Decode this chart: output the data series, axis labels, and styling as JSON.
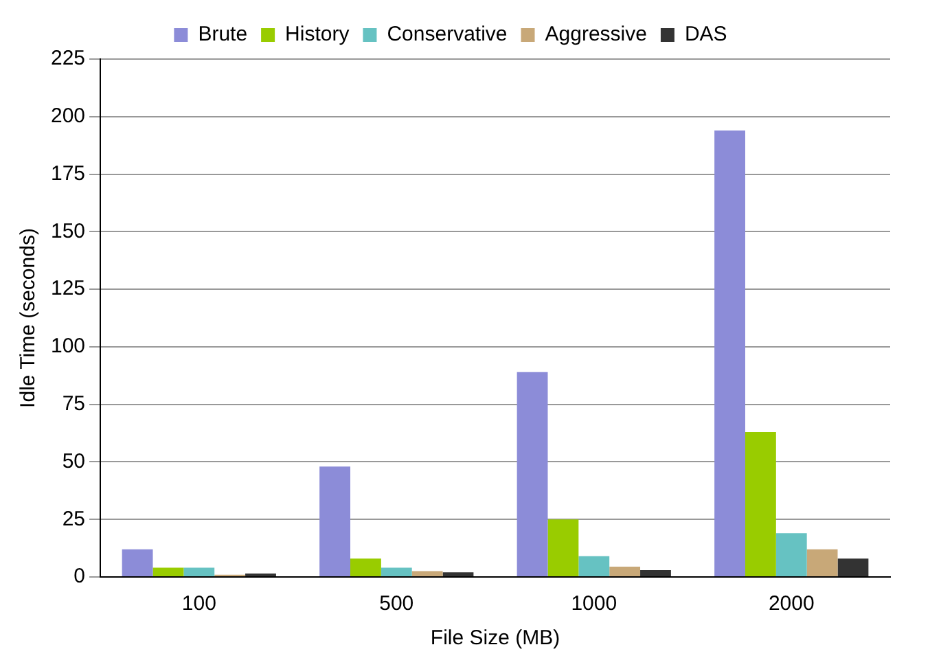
{
  "chart_data": {
    "type": "bar",
    "xlabel": "File Size (MB)",
    "ylabel": "Idle Time (seconds)",
    "categories": [
      "100",
      "500",
      "1000",
      "2000"
    ],
    "series": [
      {
        "name": "Brute",
        "color": "#8c8cd8",
        "values": [
          12,
          48,
          89,
          194
        ]
      },
      {
        "name": "History",
        "color": "#99cc00",
        "values": [
          4,
          8,
          25,
          63
        ]
      },
      {
        "name": "Conservative",
        "color": "#66c2c2",
        "values": [
          4,
          4,
          9,
          19
        ]
      },
      {
        "name": "Aggressive",
        "color": "#c8a878",
        "values": [
          1,
          2.5,
          4.5,
          12
        ]
      },
      {
        "name": "DAS",
        "color": "#333333",
        "values": [
          1.5,
          2,
          3,
          8
        ]
      }
    ],
    "ylim": [
      0,
      225
    ],
    "yticks": [
      0,
      25,
      50,
      75,
      100,
      125,
      150,
      175,
      200,
      225
    ],
    "grid": "y",
    "legend": "top"
  }
}
